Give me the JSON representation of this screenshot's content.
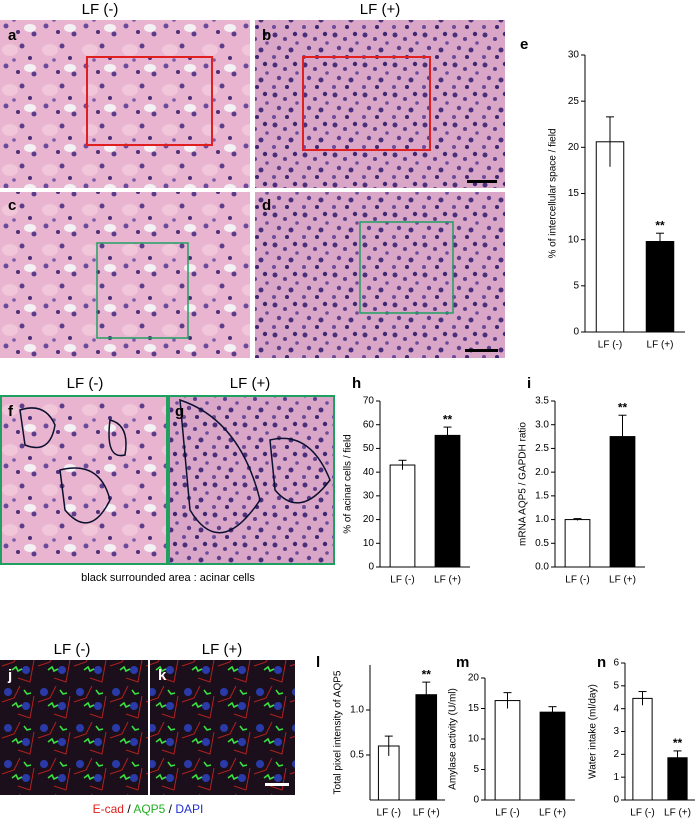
{
  "headers": {
    "row1": [
      "LF (-)",
      "LF (+)"
    ],
    "row2": [
      "LF (-)",
      "LF (+)"
    ],
    "row3": [
      "LF (-)",
      "LF (+)"
    ]
  },
  "panels": [
    "a",
    "b",
    "c",
    "d",
    "f",
    "g",
    "j",
    "k"
  ],
  "caption": "black surrounded area : acinar cells",
  "stain_legend": [
    "E-cad",
    " / ",
    "AQP5",
    " / ",
    "DAPI"
  ],
  "chart_data": [
    {
      "type": "bar",
      "label": "e",
      "ylabel": "% of intercellular space / field",
      "categories": [
        "LF (-)",
        "LF (+)"
      ],
      "values": [
        20.6,
        9.8
      ],
      "errors": [
        2.7,
        0.9
      ],
      "colors": [
        "#ffffff",
        "#000000"
      ],
      "significance": [
        null,
        "**"
      ],
      "ylim": [
        0,
        30
      ],
      "yticks": [
        0,
        5,
        10,
        15,
        20,
        25,
        30
      ]
    },
    {
      "type": "bar",
      "label": "h",
      "ylabel": "% of acinar cells / field",
      "categories": [
        "LF (-)",
        "LF (+)"
      ],
      "values": [
        43,
        55.5
      ],
      "errors": [
        2,
        3.5
      ],
      "colors": [
        "#ffffff",
        "#000000"
      ],
      "significance": [
        null,
        "**"
      ],
      "ylim": [
        0,
        70
      ],
      "yticks": [
        0,
        10,
        20,
        30,
        40,
        50,
        60,
        70
      ]
    },
    {
      "type": "bar",
      "label": "i",
      "ylabel": "mRNA AQP5 / GAPDH ratio",
      "categories": [
        "LF (-)",
        "LF (+)"
      ],
      "values": [
        1.0,
        2.75
      ],
      "errors": [
        0.02,
        0.45
      ],
      "colors": [
        "#ffffff",
        "#000000"
      ],
      "significance": [
        null,
        "**"
      ],
      "ylim": [
        0,
        3.5
      ],
      "yticks": [
        {
          "value": 0,
          "label": "0.0"
        },
        0.5,
        {
          "value": 1,
          "label": "1.0"
        },
        1.5,
        {
          "value": 2,
          "label": "2.0"
        },
        2.5,
        {
          "value": 3,
          "label": "3.0"
        },
        3.5
      ]
    },
    {
      "type": "bar",
      "label": "l",
      "ylabel": "Total pixel intensity of AQP5",
      "categories": [
        "LF (-)",
        "LF (+)"
      ],
      "values": [
        0.6,
        1.17
      ],
      "errors": [
        0.11,
        0.14
      ],
      "colors": [
        "#ffffff",
        "#000000"
      ],
      "significance": [
        null,
        "**"
      ],
      "ylim": [
        0,
        1.5
      ],
      "yticks": [
        0.5,
        {
          "value": 1,
          "label": "1.0"
        }
      ]
    },
    {
      "type": "bar",
      "label": "m",
      "ylabel": "Amylase activity (U/ml)",
      "categories": [
        "LF (-)",
        "LF (+)"
      ],
      "values": [
        16.3,
        14.4
      ],
      "errors": [
        1.3,
        0.9
      ],
      "colors": [
        "#ffffff",
        "#000000"
      ],
      "significance": [
        null,
        null
      ],
      "ylim": [
        0,
        20
      ],
      "yticks": [
        0,
        5,
        10,
        15,
        20
      ]
    },
    {
      "type": "bar",
      "label": "n",
      "ylabel": "Water intake (ml/day)",
      "categories": [
        "LF (-)",
        "LF (+)"
      ],
      "values": [
        4.45,
        1.85
      ],
      "errors": [
        0.3,
        0.3
      ],
      "colors": [
        "#ffffff",
        "#000000"
      ],
      "significance": [
        null,
        "**"
      ],
      "ylim": [
        0,
        6
      ],
      "yticks": [
        0,
        1,
        2,
        3,
        4,
        5,
        6
      ]
    }
  ]
}
